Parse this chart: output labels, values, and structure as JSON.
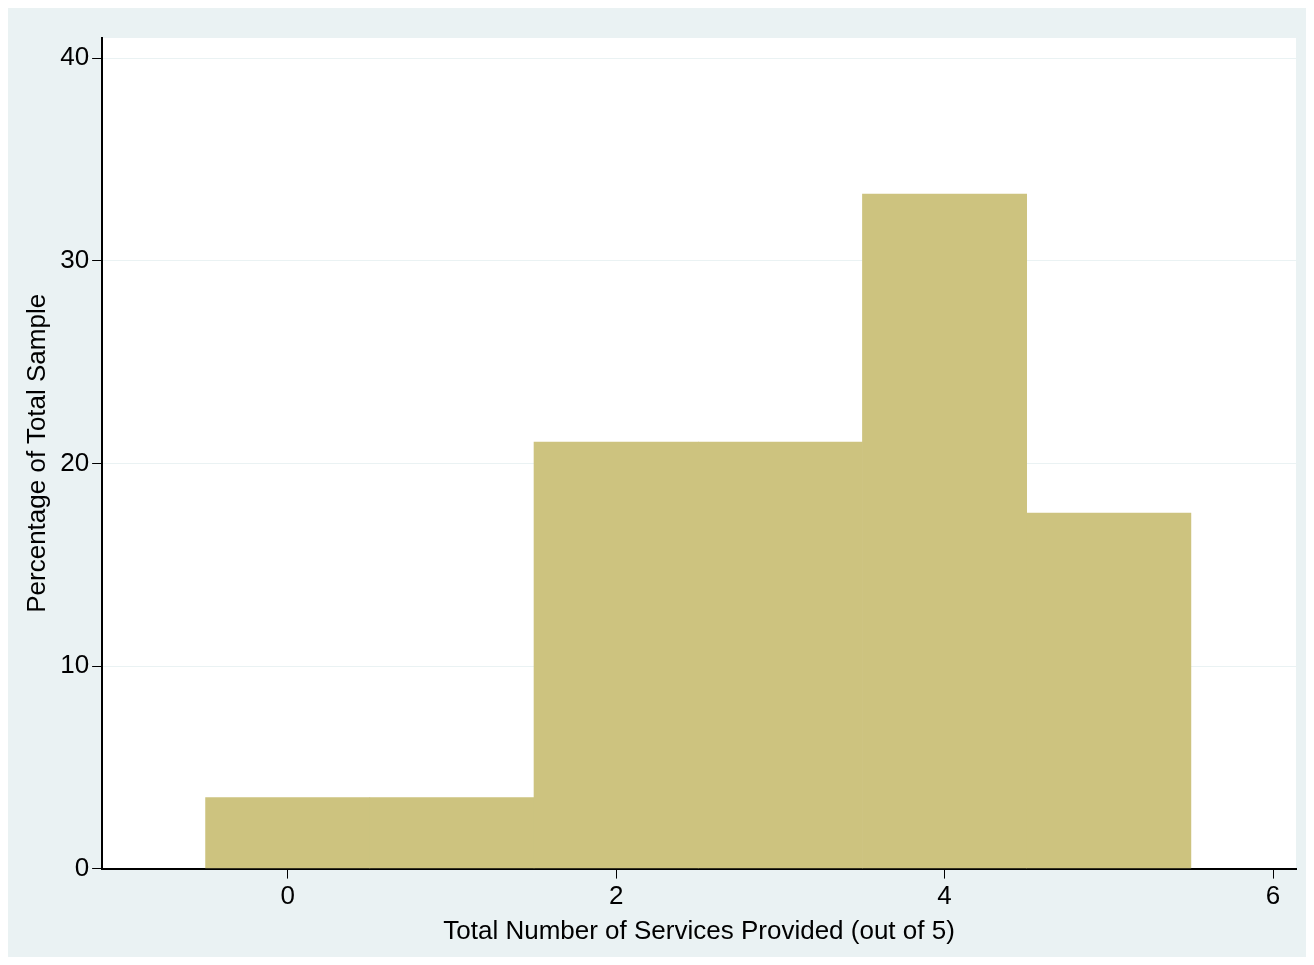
{
  "chart_data": {
    "type": "histogram",
    "xlabel": "Total Number of Services Provided (out of 5)",
    "ylabel": "Percentage of Total Sample",
    "bins": [
      -0.5,
      0.5,
      1.5,
      2.5,
      3.5,
      4.5,
      5.5
    ],
    "values": [
      3.5,
      3.5,
      21.05,
      21.05,
      33.3,
      17.55
    ],
    "color": "#cdc37f",
    "xlim": [
      -1.13,
      6.14
    ],
    "xticks": [
      0,
      2,
      4,
      6
    ],
    "ylim": [
      0,
      41
    ],
    "yticks": [
      0,
      10,
      20,
      30,
      40
    ],
    "grid": "y"
  }
}
